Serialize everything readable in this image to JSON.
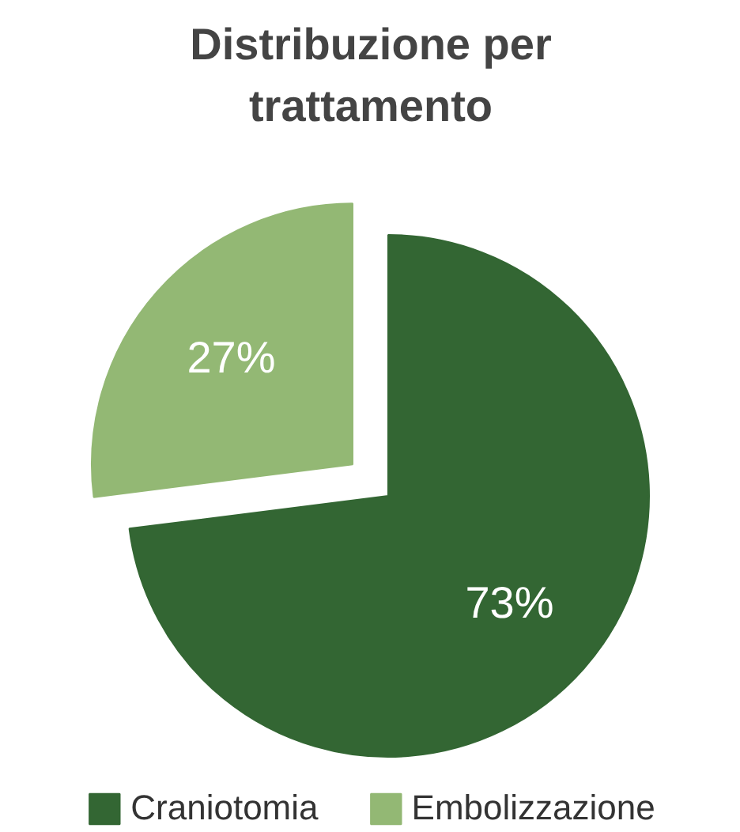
{
  "chart_data": {
    "type": "pie",
    "title": "Distribuzione per trattamento",
    "categories": [
      "Craniotomia",
      "Embolizzazione"
    ],
    "values": [
      73,
      27
    ],
    "colors": [
      "#336633",
      "#93b874"
    ],
    "value_labels": [
      "73%",
      "27%"
    ],
    "legend": "bottom"
  }
}
